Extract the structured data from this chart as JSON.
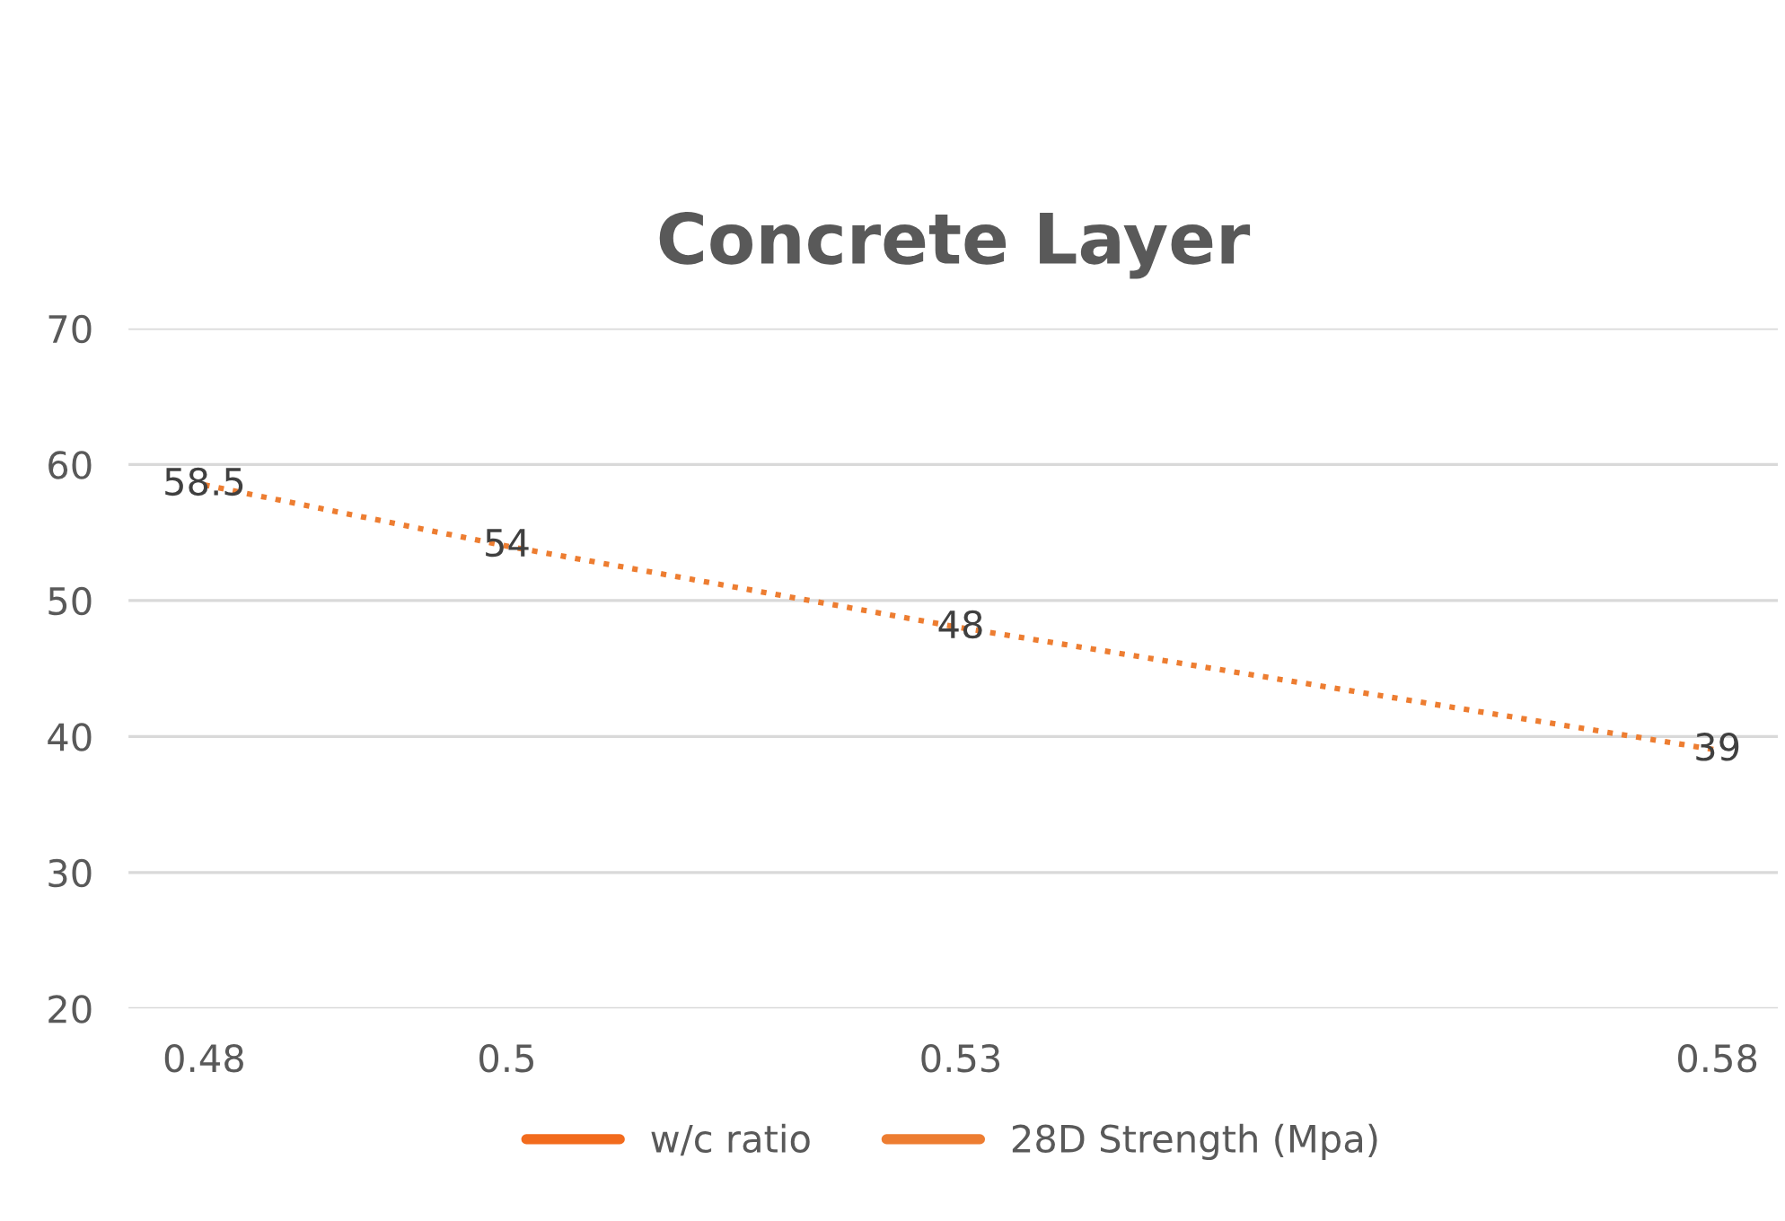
{
  "chart_data": {
    "type": "line",
    "title": "Concrete Layer",
    "x": [
      0.48,
      0.5,
      0.53,
      0.58
    ],
    "series": [
      {
        "name": "w/c ratio",
        "color": "#f26b1d",
        "values": [
          null,
          null,
          null,
          null
        ]
      },
      {
        "name": "28D Strength (Mpa)",
        "color": "#ed7d31",
        "values": [
          58.5,
          54,
          48,
          39
        ]
      }
    ],
    "xlim": [
      0.475,
      0.584
    ],
    "xticks": [
      0.48,
      0.5,
      0.53,
      0.58
    ],
    "ylim": [
      20,
      70
    ],
    "yticks": [
      20,
      30,
      40,
      50,
      60,
      70
    ],
    "grid": "y",
    "legend": "bottom",
    "data_labels": true,
    "line_style": "dotted",
    "marker": "none"
  }
}
